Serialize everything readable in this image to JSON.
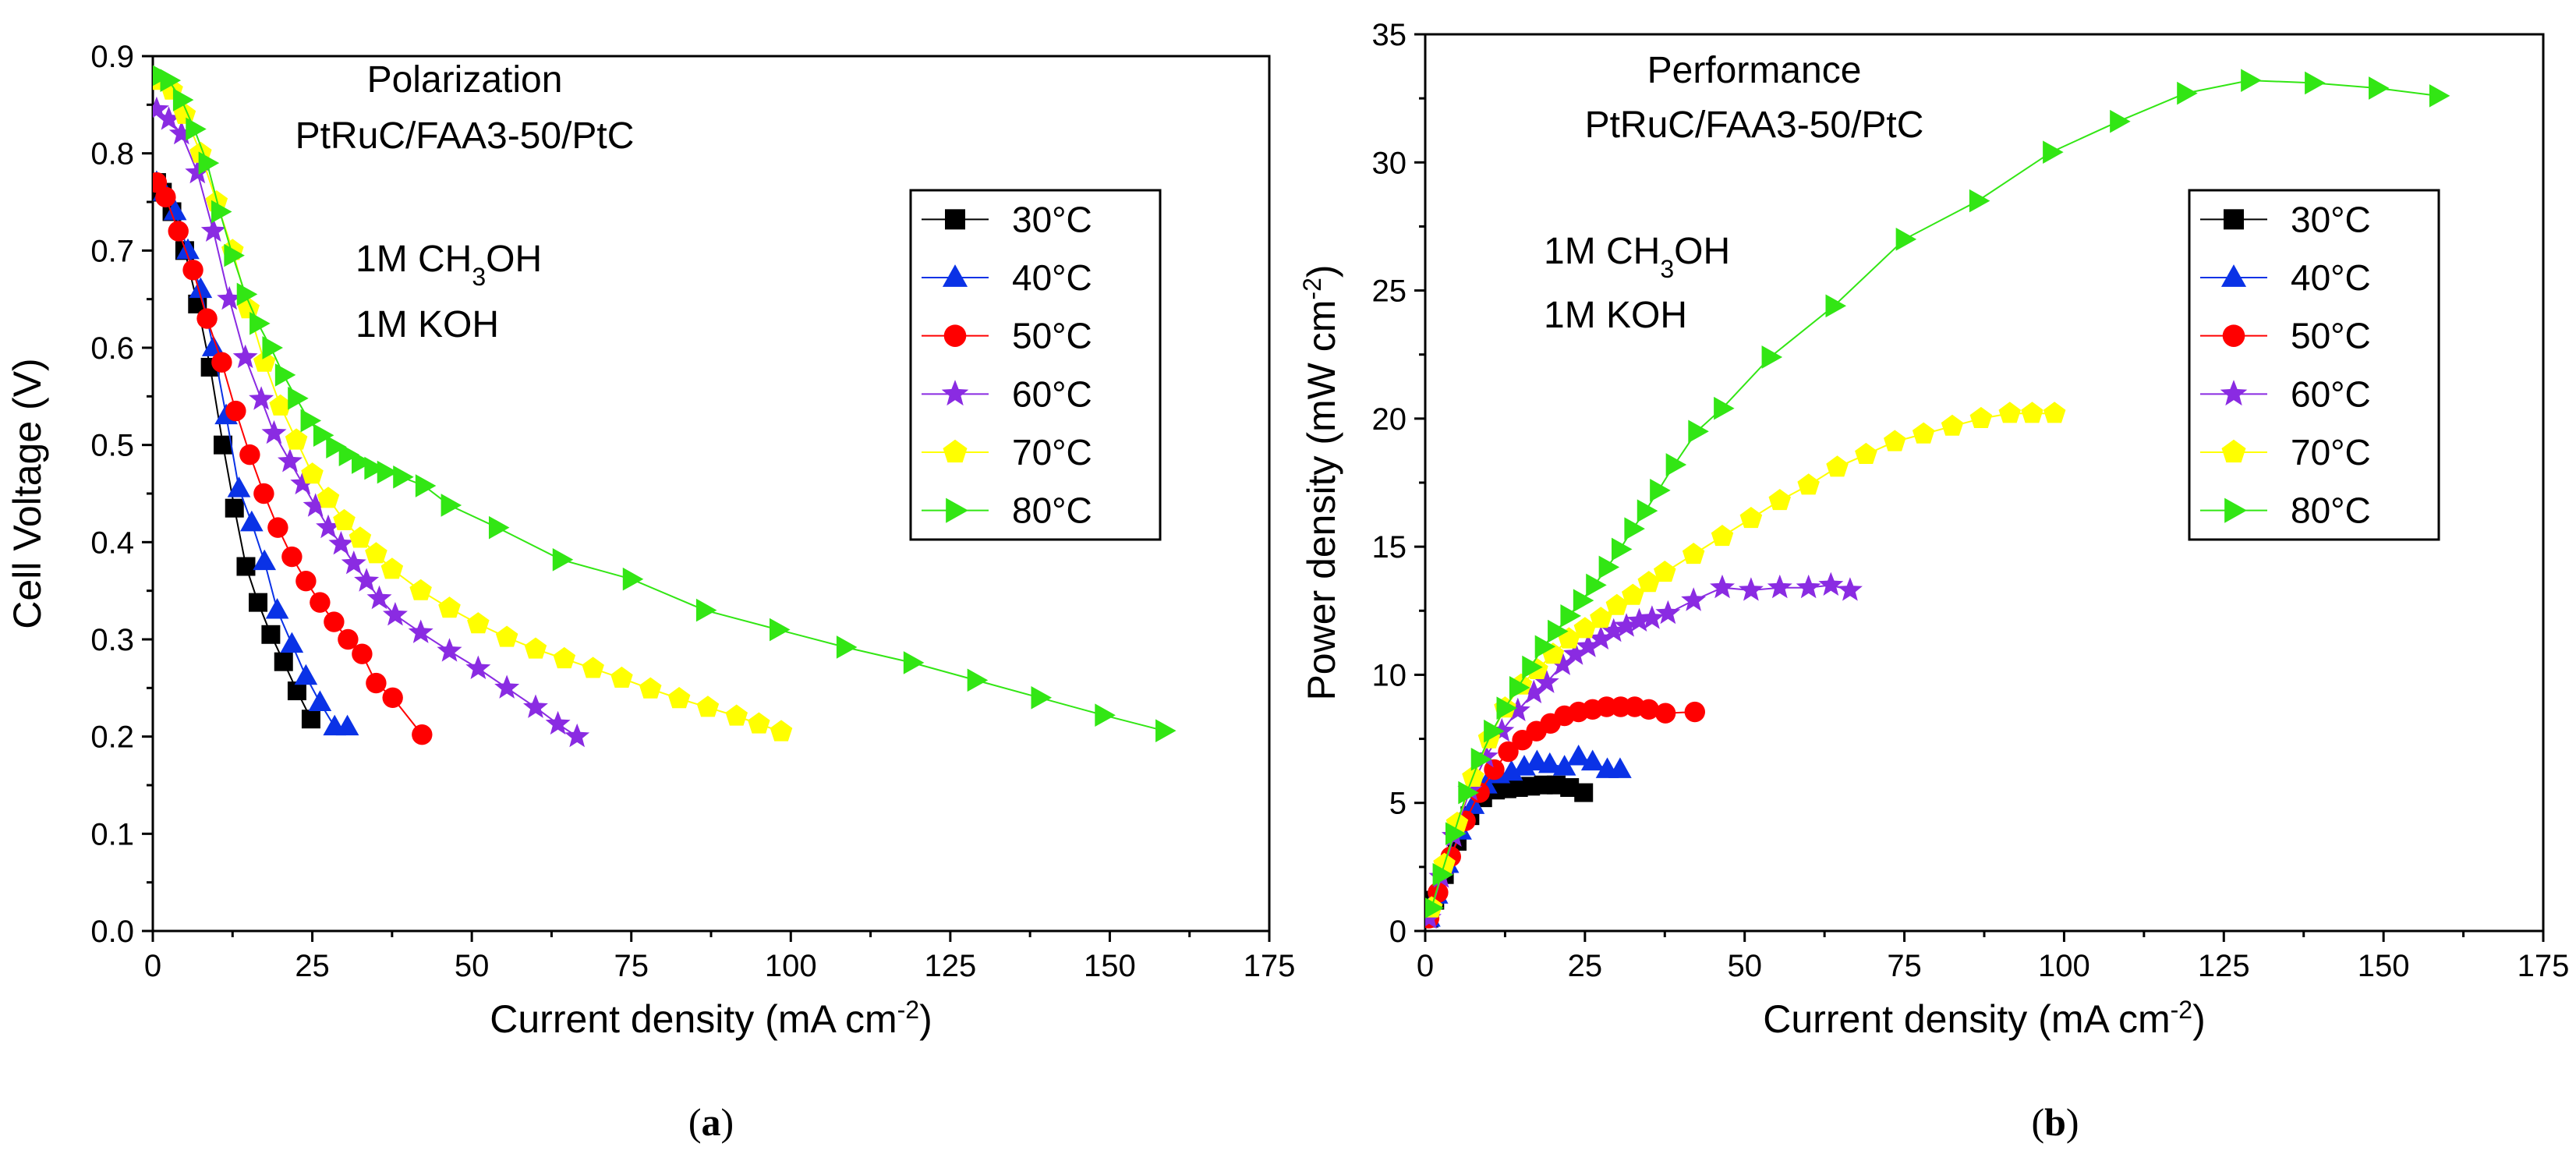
{
  "chart_data": [
    {
      "type": "line",
      "panel_label": "a",
      "xlabel": "Current density (mA cm",
      "xlabel_sup": "-2",
      "xlabel_end": ")",
      "ylabel": "Cell Voltage (V)",
      "xlim": [
        0,
        175
      ],
      "ylim": [
        0,
        0.9
      ],
      "xticks": [
        0,
        25,
        50,
        75,
        100,
        125,
        150,
        175
      ],
      "yticks": [
        0,
        0.1,
        0.2,
        0.3,
        0.4,
        0.5,
        0.6,
        0.7,
        0.8,
        0.9
      ],
      "ytick_labels": [
        "0.0",
        "0.1",
        "0.2",
        "0.3",
        "0.4",
        "0.5",
        "0.6",
        "0.7",
        "0.8",
        "0.9"
      ],
      "annotations": {
        "title_line1": "Polarization",
        "title_line2": "PtRuC/FAA3-50/PtC",
        "cond1_pre": "1M CH",
        "cond1_sub": "3",
        "cond1_post": "OH",
        "cond2": "1M KOH"
      },
      "legend_position": "top-right",
      "series": [
        {
          "name": "30°C",
          "color": "#000000",
          "marker": "square",
          "x": [
            0.6,
            1.5,
            3.0,
            5.0,
            7.0,
            9.0,
            11.0,
            12.8,
            14.6,
            16.5,
            18.5,
            20.5,
            22.6,
            24.8
          ],
          "y": [
            0.77,
            0.76,
            0.74,
            0.7,
            0.645,
            0.58,
            0.5,
            0.435,
            0.375,
            0.338,
            0.305,
            0.277,
            0.247,
            0.218
          ]
        },
        {
          "name": "40°C",
          "color": "#0a32e6",
          "marker": "triangle-up",
          "x": [
            0.6,
            1.8,
            3.5,
            5.5,
            7.5,
            9.5,
            11.5,
            13.5,
            15.5,
            17.5,
            19.5,
            21.8,
            24.0,
            26.2,
            28.5,
            30.5
          ],
          "y": [
            0.77,
            0.76,
            0.74,
            0.7,
            0.66,
            0.6,
            0.53,
            0.455,
            0.42,
            0.38,
            0.33,
            0.295,
            0.262,
            0.235,
            0.21,
            0.21
          ]
        },
        {
          "name": "50°C",
          "color": "#ff0000",
          "marker": "circle",
          "x": [
            0.6,
            2.0,
            4.0,
            6.3,
            8.5,
            10.8,
            13.0,
            15.2,
            17.4,
            19.6,
            21.8,
            24.0,
            26.2,
            28.4,
            30.6,
            32.8,
            35.0,
            37.6,
            42.2
          ],
          "y": [
            0.77,
            0.755,
            0.72,
            0.68,
            0.63,
            0.585,
            0.535,
            0.49,
            0.45,
            0.415,
            0.385,
            0.36,
            0.338,
            0.318,
            0.3,
            0.285,
            0.255,
            0.24,
            0.202
          ]
        },
        {
          "name": "60°C",
          "color": "#8a2be2",
          "marker": "star",
          "x": [
            0.6,
            2.5,
            4.5,
            7.0,
            9.5,
            12.0,
            14.5,
            17.0,
            19.0,
            21.5,
            23.5,
            25.5,
            27.5,
            29.5,
            31.5,
            33.5,
            35.5,
            38.0,
            42.0,
            46.5,
            51.0,
            55.5,
            60.0,
            63.5,
            66.5
          ],
          "y": [
            0.845,
            0.835,
            0.82,
            0.78,
            0.72,
            0.65,
            0.59,
            0.547,
            0.512,
            0.483,
            0.46,
            0.437,
            0.415,
            0.398,
            0.378,
            0.36,
            0.342,
            0.325,
            0.307,
            0.288,
            0.27,
            0.25,
            0.23,
            0.213,
            0.2
          ]
        },
        {
          "name": "70°C",
          "color": "#ffff00",
          "marker": "pentagon",
          "x": [
            1.0,
            3.0,
            5.0,
            7.5,
            10.0,
            12.5,
            15.0,
            17.5,
            20.0,
            22.5,
            25.0,
            27.5,
            30.0,
            32.5,
            35.0,
            37.5,
            42.0,
            46.5,
            51.0,
            55.5,
            60.0,
            64.5,
            69.0,
            73.5,
            78.0,
            82.5,
            87.0,
            91.5,
            95.0,
            98.5
          ],
          "y": [
            0.875,
            0.865,
            0.84,
            0.8,
            0.75,
            0.7,
            0.64,
            0.585,
            0.54,
            0.505,
            0.47,
            0.445,
            0.422,
            0.404,
            0.388,
            0.372,
            0.35,
            0.332,
            0.316,
            0.302,
            0.29,
            0.28,
            0.27,
            0.26,
            0.249,
            0.239,
            0.23,
            0.221,
            0.213,
            0.205
          ]
        },
        {
          "name": "80°C",
          "color": "#32e614",
          "marker": "triangle-right",
          "x": [
            1.0,
            2.5,
            4.5,
            6.5,
            8.5,
            10.5,
            12.5,
            14.5,
            16.5,
            18.5,
            20.5,
            22.5,
            24.5,
            26.5,
            28.5,
            30.5,
            32.5,
            34.5,
            36.5,
            39.0,
            42.5,
            46.5,
            54.0,
            64.0,
            75.0,
            86.5,
            98.0,
            108.5,
            119.0,
            129.0,
            139.0,
            149.0,
            158.5
          ],
          "y": [
            0.88,
            0.875,
            0.855,
            0.825,
            0.79,
            0.74,
            0.695,
            0.655,
            0.625,
            0.6,
            0.572,
            0.548,
            0.525,
            0.51,
            0.498,
            0.49,
            0.482,
            0.476,
            0.472,
            0.467,
            0.458,
            0.438,
            0.415,
            0.382,
            0.362,
            0.33,
            0.31,
            0.292,
            0.276,
            0.258,
            0.24,
            0.222,
            0.206
          ]
        }
      ]
    },
    {
      "type": "line",
      "panel_label": "b",
      "xlabel": "Current density (mA cm",
      "xlabel_sup": "-2",
      "xlabel_end": ")",
      "ylabel": "Power density (mW cm",
      "ylabel_sup": "-2",
      "ylabel_end": ")",
      "xlim": [
        0,
        175
      ],
      "ylim": [
        0,
        35
      ],
      "xticks": [
        0,
        25,
        50,
        75,
        100,
        125,
        150,
        175
      ],
      "yticks": [
        0,
        5,
        10,
        15,
        20,
        25,
        30,
        35
      ],
      "ytick_labels": [
        "0",
        "5",
        "10",
        "15",
        "20",
        "25",
        "30",
        "35"
      ],
      "annotations": {
        "title_line1": "Performance",
        "title_line2": "PtRuC/FAA3-50/PtC",
        "cond1_pre": "1M CH",
        "cond1_sub": "3",
        "cond1_post": "OH",
        "cond2": "1M KOH"
      },
      "legend_position": "top-right",
      "series": [
        {
          "name": "30°C",
          "color": "#000000",
          "marker": "square",
          "x": [
            0.6,
            1.5,
            3.0,
            5.0,
            7.0,
            9.0,
            11.0,
            12.8,
            14.6,
            16.5,
            18.5,
            20.5,
            22.6,
            24.8
          ],
          "y": [
            0.5,
            1.2,
            2.2,
            3.5,
            4.5,
            5.2,
            5.5,
            5.55,
            5.6,
            5.65,
            5.7,
            5.7,
            5.6,
            5.4
          ]
        },
        {
          "name": "40°C",
          "color": "#0a32e6",
          "marker": "triangle-up",
          "x": [
            0.6,
            1.8,
            3.5,
            5.5,
            7.5,
            9.5,
            11.5,
            13.5,
            15.5,
            17.5,
            19.5,
            21.8,
            24.0,
            26.2,
            28.5,
            30.5
          ],
          "y": [
            0.5,
            1.4,
            2.6,
            3.9,
            4.9,
            5.7,
            6.1,
            6.2,
            6.4,
            6.6,
            6.5,
            6.4,
            6.8,
            6.6,
            6.3,
            6.3
          ]
        },
        {
          "name": "50°C",
          "color": "#ff0000",
          "marker": "circle",
          "x": [
            0.6,
            2.0,
            4.0,
            6.3,
            8.5,
            10.8,
            13.0,
            15.2,
            17.4,
            19.6,
            21.8,
            24.0,
            26.2,
            28.4,
            30.6,
            32.8,
            35.0,
            37.6,
            42.2
          ],
          "y": [
            0.5,
            1.5,
            2.9,
            4.3,
            5.4,
            6.3,
            7.0,
            7.45,
            7.8,
            8.1,
            8.4,
            8.55,
            8.65,
            8.75,
            8.75,
            8.75,
            8.65,
            8.5,
            8.55
          ]
        },
        {
          "name": "60°C",
          "color": "#8a2be2",
          "marker": "star",
          "x": [
            0.6,
            2.5,
            4.5,
            7.0,
            9.5,
            12.0,
            14.5,
            17.0,
            19.0,
            21.5,
            23.5,
            25.5,
            27.5,
            29.5,
            31.5,
            33.5,
            35.5,
            38.0,
            42.0,
            46.5,
            51.0,
            55.5,
            60.0,
            63.5,
            66.5
          ],
          "y": [
            0.5,
            2.1,
            3.7,
            5.5,
            6.8,
            7.8,
            8.6,
            9.3,
            9.7,
            10.4,
            10.8,
            11.1,
            11.4,
            11.7,
            11.9,
            12.1,
            12.2,
            12.4,
            12.9,
            13.4,
            13.3,
            13.4,
            13.4,
            13.5,
            13.3
          ]
        },
        {
          "name": "70°C",
          "color": "#ffff00",
          "marker": "pentagon",
          "x": [
            1.0,
            3.0,
            5.0,
            7.5,
            10.0,
            12.5,
            15.0,
            17.5,
            20.0,
            22.5,
            25.0,
            27.5,
            30.0,
            32.5,
            35.0,
            37.5,
            42.0,
            46.5,
            51.0,
            55.5,
            60.0,
            64.5,
            69.0,
            73.5,
            78.0,
            82.5,
            87.0,
            91.5,
            95.0,
            98.5
          ],
          "y": [
            0.9,
            2.6,
            4.2,
            6.0,
            7.5,
            8.7,
            9.6,
            10.2,
            10.8,
            11.4,
            11.8,
            12.2,
            12.7,
            13.1,
            13.6,
            14.0,
            14.7,
            15.4,
            16.1,
            16.8,
            17.4,
            18.1,
            18.6,
            19.1,
            19.4,
            19.7,
            20.0,
            20.2,
            20.2,
            20.2
          ]
        },
        {
          "name": "80°C",
          "color": "#32e614",
          "marker": "triangle-right",
          "x": [
            1.0,
            2.5,
            4.5,
            6.5,
            8.5,
            10.5,
            12.5,
            14.5,
            16.5,
            18.5,
            20.5,
            22.5,
            24.5,
            26.5,
            28.5,
            30.5,
            32.5,
            34.5,
            36.5,
            39.0,
            42.5,
            46.5,
            54.0,
            64.0,
            75.0,
            86.5,
            98.0,
            108.5,
            119.0,
            129.0,
            139.0,
            149.0,
            158.5
          ],
          "y": [
            0.9,
            2.2,
            3.8,
            5.4,
            6.7,
            7.8,
            8.7,
            9.5,
            10.3,
            11.1,
            11.7,
            12.3,
            12.9,
            13.5,
            14.2,
            14.9,
            15.7,
            16.4,
            17.2,
            18.2,
            19.5,
            20.4,
            22.4,
            24.4,
            27.0,
            28.5,
            30.4,
            31.6,
            32.7,
            33.2,
            33.1,
            32.9,
            32.6
          ]
        }
      ]
    }
  ]
}
